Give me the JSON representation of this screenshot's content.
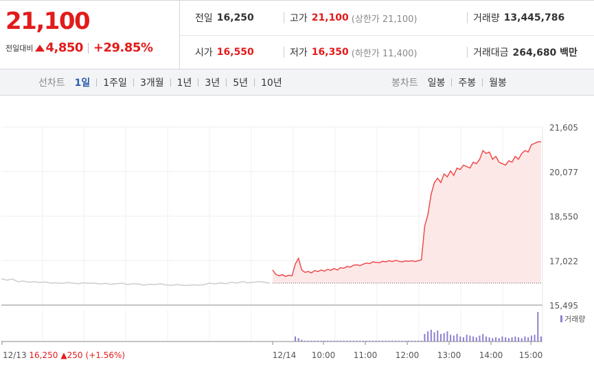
{
  "summary": {
    "price": "21,100",
    "change_label": "전일대비",
    "change_value": "4,850",
    "change_percent": "+29.85%"
  },
  "stats": {
    "prev_close_label": "전일",
    "prev_close": "16,250",
    "open_label": "시가",
    "open": "16,550",
    "high_label": "고가",
    "high": "21,100",
    "upper_limit_note": "(상한가 21,100)",
    "low_label": "저가",
    "low": "16,350",
    "lower_limit_note": "(하한가 11,400)",
    "volume_label": "거래량",
    "volume": "13,445,786",
    "amount_label": "거래대금",
    "amount": "264,680 백만"
  },
  "line_tabs": {
    "label": "선차트",
    "items": [
      "1일",
      "1주일",
      "3개월",
      "1년",
      "3년",
      "5년",
      "10년"
    ],
    "active": "1일"
  },
  "candle_tabs": {
    "label": "봉차트",
    "items": [
      "일봉",
      "주봉",
      "월봉"
    ]
  },
  "colors": {
    "up": "#e21b1b",
    "line_today": "#ef4a4a",
    "line_prev": "#cccccc",
    "fill_today": "#fde8e8",
    "volume": "#8a7fd0"
  },
  "chart_data": {
    "type": "line",
    "y_ticks": [
      "21,605",
      "20,077",
      "18,550",
      "17,022",
      "15,495"
    ],
    "ylim": [
      15495,
      21605
    ],
    "x_labels": [
      "12/14",
      "10:00",
      "11:00",
      "12:00",
      "13:00",
      "14:00",
      "15:00"
    ],
    "prev_day_caption": {
      "date": "12/13",
      "close": "16,250",
      "change": "250",
      "pct": "(+1.56%)"
    },
    "prev_close_line": 16250,
    "prev_day_series": [
      16400,
      16350,
      16390,
      16300,
      16320,
      16280,
      16300,
      16270,
      16290,
      16250,
      16260,
      16240,
      16270,
      16250,
      16230,
      16260,
      16240,
      16250,
      16220,
      16240,
      16210,
      16230,
      16250,
      16200,
      16230,
      16220,
      16180,
      16210,
      16200,
      16230,
      16190,
      16170,
      16200,
      16180,
      16170,
      16190,
      16180,
      16200,
      16250,
      16220,
      16260,
      16230,
      16280,
      16250,
      16300,
      16260,
      16280,
      16300,
      16280,
      16250
    ],
    "today_series": [
      16700,
      16550,
      16500,
      16540,
      16480,
      16520,
      16500,
      16900,
      17100,
      16700,
      16620,
      16650,
      16600,
      16680,
      16650,
      16700,
      16660,
      16720,
      16690,
      16750,
      16700,
      16780,
      16760,
      16820,
      16800,
      16860,
      16880,
      16850,
      16900,
      16940,
      16920,
      16980,
      16960,
      16950,
      17000,
      16980,
      17020,
      16990,
      17030,
      17000,
      16980,
      17010,
      17000,
      17020,
      16990,
      17020,
      17050,
      18200,
      18600,
      19300,
      19700,
      19850,
      19700,
      20000,
      19900,
      20100,
      19950,
      20200,
      20150,
      20300,
      20250,
      20200,
      20400,
      20350,
      20500,
      20800,
      20700,
      20750,
      20500,
      20600,
      20400,
      20350,
      20300,
      20450,
      20400,
      20600,
      20500,
      20700,
      20800,
      20750,
      21000,
      21050,
      21100,
      21100
    ],
    "volume_label": "거래량",
    "volume_series": [
      0,
      0,
      0,
      0,
      0,
      0,
      0,
      6,
      4,
      2,
      1,
      1,
      1,
      1,
      1,
      1,
      1,
      1,
      1,
      1,
      1,
      1,
      1,
      1,
      1,
      1,
      1,
      1,
      1,
      1,
      1,
      1,
      1,
      1,
      1,
      1,
      1,
      1,
      1,
      1,
      1,
      1,
      1,
      1,
      1,
      1,
      1,
      9,
      12,
      14,
      11,
      13,
      9,
      10,
      12,
      8,
      7,
      9,
      6,
      5,
      8,
      7,
      6,
      5,
      7,
      9,
      6,
      5,
      4,
      5,
      4,
      6,
      5,
      4,
      5,
      6,
      5,
      4,
      6,
      5,
      7,
      8,
      35,
      6
    ]
  }
}
